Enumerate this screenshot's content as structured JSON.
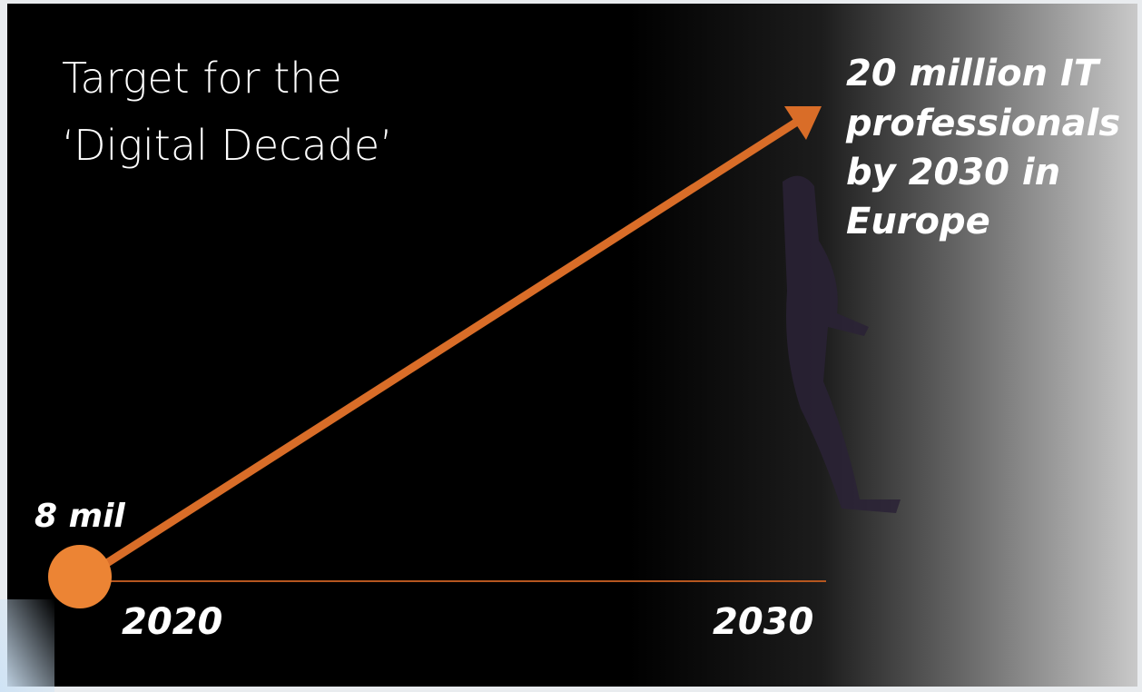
{
  "title": {
    "lines": [
      "Target for the",
      "‘Digital Decade’"
    ]
  },
  "start": {
    "label": "8 mil",
    "year": "2020"
  },
  "end": {
    "year": "2030",
    "lines": [
      "20 million IT",
      "professionals",
      "by 2030 in",
      "Europe"
    ]
  }
}
